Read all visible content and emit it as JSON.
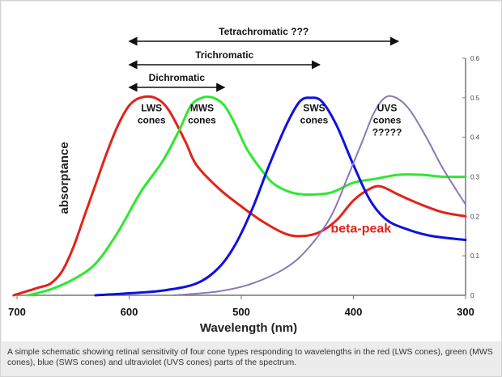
{
  "chart_data": {
    "type": "line",
    "xlabel": "Wavelength (nm)",
    "ylabel": "absorptance",
    "xlim": [
      700,
      300
    ],
    "ylim": [
      0,
      0.6
    ],
    "x_ticks": [
      {
        "value": 700,
        "label": "700"
      },
      {
        "value": 600,
        "label": "600"
      },
      {
        "value": 500,
        "label": "500"
      },
      {
        "value": 400,
        "label": "400"
      },
      {
        "value": 300,
        "label": "300"
      }
    ],
    "y_ticks": [
      {
        "value": 0,
        "label": "0"
      },
      {
        "value": 0.1,
        "label": "0.1"
      },
      {
        "value": 0.2,
        "label": "0.2"
      },
      {
        "value": 0.3,
        "label": "0.3"
      },
      {
        "value": 0.4,
        "label": "0.4"
      },
      {
        "value": 0.5,
        "label": "0.5"
      },
      {
        "value": 0.6,
        "label": "0.6"
      }
    ],
    "series": [
      {
        "color": "#e2231a",
        "points": [
          [
            703,
            0
          ],
          [
            680,
            0.02
          ],
          [
            670,
            0.03
          ],
          [
            660,
            0.06
          ],
          [
            650,
            0.12
          ],
          [
            640,
            0.2
          ],
          [
            630,
            0.28
          ],
          [
            620,
            0.36
          ],
          [
            610,
            0.43
          ],
          [
            600,
            0.48
          ],
          [
            590,
            0.5
          ],
          [
            577,
            0.5
          ],
          [
            565,
            0.47
          ],
          [
            550,
            0.39
          ],
          [
            540,
            0.33
          ],
          [
            520,
            0.27
          ],
          [
            500,
            0.225
          ],
          [
            480,
            0.185
          ],
          [
            460,
            0.155
          ],
          [
            445,
            0.15
          ],
          [
            430,
            0.16
          ],
          [
            415,
            0.19
          ],
          [
            400,
            0.24
          ],
          [
            385,
            0.27
          ],
          [
            375,
            0.275
          ],
          [
            360,
            0.255
          ],
          [
            340,
            0.23
          ],
          [
            320,
            0.21
          ],
          [
            300,
            0.2
          ]
        ]
      },
      {
        "color": "#2ee830",
        "points": [
          [
            690,
            0
          ],
          [
            670,
            0.015
          ],
          [
            650,
            0.04
          ],
          [
            630,
            0.08
          ],
          [
            610,
            0.16
          ],
          [
            590,
            0.26
          ],
          [
            570,
            0.34
          ],
          [
            555,
            0.42
          ],
          [
            545,
            0.48
          ],
          [
            535,
            0.5
          ],
          [
            525,
            0.5
          ],
          [
            515,
            0.48
          ],
          [
            505,
            0.43
          ],
          [
            495,
            0.37
          ],
          [
            480,
            0.31
          ],
          [
            470,
            0.28
          ],
          [
            455,
            0.26
          ],
          [
            440,
            0.255
          ],
          [
            420,
            0.26
          ],
          [
            400,
            0.285
          ],
          [
            380,
            0.295
          ],
          [
            360,
            0.305
          ],
          [
            340,
            0.305
          ],
          [
            320,
            0.3
          ],
          [
            300,
            0.3
          ]
        ]
      },
      {
        "color": "#1010e0",
        "points": [
          [
            630,
            0
          ],
          [
            600,
            0.005
          ],
          [
            570,
            0.012
          ],
          [
            540,
            0.03
          ],
          [
            520,
            0.07
          ],
          [
            505,
            0.13
          ],
          [
            490,
            0.22
          ],
          [
            475,
            0.33
          ],
          [
            460,
            0.43
          ],
          [
            448,
            0.49
          ],
          [
            438,
            0.5
          ],
          [
            428,
            0.49
          ],
          [
            415,
            0.43
          ],
          [
            400,
            0.33
          ],
          [
            385,
            0.24
          ],
          [
            370,
            0.19
          ],
          [
            350,
            0.165
          ],
          [
            330,
            0.15
          ],
          [
            300,
            0.14
          ]
        ]
      },
      {
        "color": "#8a78b8",
        "points": [
          [
            560,
            0
          ],
          [
            520,
            0.01
          ],
          [
            490,
            0.03
          ],
          [
            460,
            0.07
          ],
          [
            440,
            0.12
          ],
          [
            420,
            0.2
          ],
          [
            405,
            0.3
          ],
          [
            392,
            0.39
          ],
          [
            382,
            0.46
          ],
          [
            372,
            0.5
          ],
          [
            362,
            0.5
          ],
          [
            350,
            0.47
          ],
          [
            335,
            0.4
          ],
          [
            320,
            0.32
          ],
          [
            300,
            0.23
          ]
        ]
      }
    ],
    "cone_labels": [
      {
        "lines": [
          "LWS",
          "cones"
        ],
        "x": 580,
        "y": 0.46
      },
      {
        "lines": [
          "MWS",
          "cones"
        ],
        "x": 535,
        "y": 0.46
      },
      {
        "lines": [
          "SWS",
          "cones"
        ],
        "x": 435,
        "y": 0.46
      },
      {
        "lines": [
          "UVS",
          "cones",
          "?????"
        ],
        "x": 370,
        "y": 0.46
      }
    ],
    "brackets": [
      {
        "label": "Dichromatic",
        "from": 600,
        "to": 515
      },
      {
        "label": "Trichromatic",
        "from": 600,
        "to": 430
      },
      {
        "label": "Tetrachromatic ???",
        "from": 600,
        "to": 360
      }
    ],
    "annotation": {
      "text": "beta-peak",
      "x": 400,
      "y": 0.155
    }
  },
  "caption": "A simple schematic showing retinal sensitivity of four cone types responding to wavelengths in the red (LWS cones), green (MWS cones), blue (SWS cones) and ultraviolet (UVS cones) parts of the spectrum."
}
